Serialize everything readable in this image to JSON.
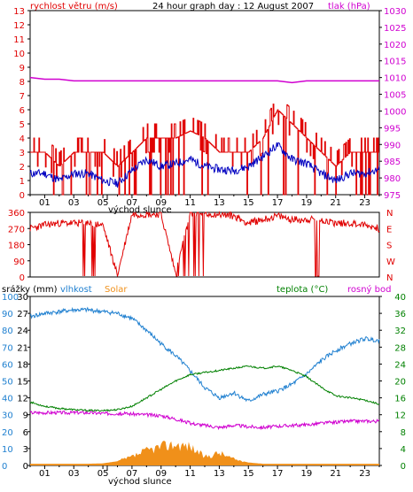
{
  "title": "24 hour graph day : 12 August 2007",
  "colors": {
    "red": "#e00000",
    "blue": "#0000c0",
    "magenta": "#d000d0",
    "green": "#008000",
    "orange": "#f0901a",
    "sky": "#2080d0",
    "frame": "#000000"
  },
  "chart_data": [
    {
      "type": "line",
      "title": "24 hour graph day : 12 August 2007",
      "left_axis": {
        "label": "rychlost větru (m/s)",
        "min": 0,
        "max": 13,
        "ticks": [
          "0",
          "1",
          "2",
          "3",
          "4",
          "5",
          "6",
          "7",
          "8",
          "9",
          "10",
          "11",
          "12",
          "13"
        ]
      },
      "right_axis": {
        "label": "tlak (hPa)",
        "min": 975,
        "max": 1030,
        "ticks": [
          "975",
          "980",
          "985",
          "990",
          "995",
          "1000",
          "1005",
          "1010",
          "1015",
          "1020",
          "1025",
          "1030"
        ]
      },
      "x_axis": {
        "ticks": [
          "01",
          "03",
          "05",
          "07",
          "09",
          "11",
          "13",
          "15",
          "17",
          "19",
          "21",
          "23"
        ],
        "sunrise_label": "východ slunce",
        "sunrise_hour": 5.3
      },
      "grid": false,
      "series": [
        {
          "name": "",
          "kind": "wind_gust_bars",
          "x": [
            0,
            1,
            2,
            3,
            4,
            5,
            6,
            7,
            8,
            9,
            10,
            11,
            12,
            13,
            14,
            15,
            16,
            17,
            18,
            19,
            20,
            21,
            22,
            23,
            24
          ],
          "y": [
            3,
            3,
            2,
            3,
            3,
            3,
            2,
            3,
            4,
            4,
            4,
            4.5,
            4,
            3,
            3,
            3,
            4,
            6,
            5,
            4,
            3,
            2,
            3,
            3,
            3
          ]
        },
        {
          "name": "",
          "kind": "wind_avg",
          "x": [
            0,
            1,
            2,
            3,
            4,
            5,
            6,
            7,
            8,
            9,
            10,
            11,
            12,
            13,
            14,
            15,
            16,
            17,
            18,
            19,
            20,
            21,
            22,
            23,
            24
          ],
          "y": [
            1.5,
            1.5,
            1.0,
            1.5,
            1.5,
            1.0,
            0.8,
            1.7,
            2.5,
            2.0,
            2.2,
            2.5,
            2.0,
            1.8,
            1.7,
            2.0,
            2.7,
            3.5,
            2.5,
            2.2,
            1.5,
            1.0,
            1.5,
            1.5,
            1.8
          ]
        },
        {
          "name": "",
          "kind": "pressure",
          "x": [
            0,
            1,
            2,
            3,
            4,
            5,
            6,
            7,
            8,
            9,
            10,
            11,
            12,
            13,
            14,
            15,
            16,
            17,
            18,
            19,
            20,
            21,
            22,
            23,
            24
          ],
          "y": [
            1010,
            1009.5,
            1009.5,
            1009,
            1009,
            1009,
            1009,
            1009,
            1009,
            1009,
            1009,
            1009,
            1009,
            1009,
            1009,
            1009,
            1009,
            1009,
            1008.5,
            1009,
            1009,
            1009,
            1009,
            1009,
            1009
          ]
        }
      ]
    },
    {
      "type": "scatter",
      "title": "",
      "left_axis": {
        "min": 0,
        "max": 360,
        "ticks": [
          "0",
          "90",
          "180",
          "270",
          "360"
        ]
      },
      "right_axis": {
        "ticks": [
          "N",
          "E",
          "S",
          "W",
          "N"
        ]
      },
      "series": [
        {
          "name": "",
          "kind": "wind_direction",
          "x": [
            0,
            1,
            2,
            3,
            4,
            5,
            6,
            7,
            8,
            9,
            10,
            11,
            12,
            13,
            14,
            15,
            16,
            17,
            18,
            19,
            20,
            21,
            22,
            23,
            24
          ],
          "y": [
            270,
            290,
            300,
            300,
            300,
            290,
            10,
            350,
            350,
            350,
            20,
            350,
            350,
            350,
            340,
            300,
            320,
            340,
            320,
            320,
            320,
            300,
            300,
            290,
            270
          ]
        }
      ]
    },
    {
      "type": "line",
      "title": "",
      "legend": [
        "srážky (mm)",
        "vlhkost",
        "Solar",
        "teplota (°C)",
        "rosný bod"
      ],
      "left_axes": [
        {
          "label": "srážky (mm)",
          "min": 0,
          "max": 30,
          "ticks": [
            "0",
            "3",
            "6",
            "9",
            "12",
            "15",
            "18",
            "21",
            "24",
            "27",
            "30"
          ]
        },
        {
          "label": "vlhkost",
          "min": 0,
          "max": 100,
          "ticks": [
            "0",
            "10",
            "20",
            "30",
            "40",
            "50",
            "60",
            "70",
            "80",
            "90",
            "100"
          ]
        }
      ],
      "right_axis": {
        "label": "teplota (°C)",
        "min": 0,
        "max": 40,
        "ticks": [
          "0",
          "4",
          "8",
          "12",
          "16",
          "20",
          "24",
          "28",
          "32",
          "36",
          "40"
        ]
      },
      "x_axis": {
        "ticks": [
          "01",
          "03",
          "05",
          "07",
          "09",
          "11",
          "13",
          "15",
          "17",
          "19",
          "21",
          "23"
        ],
        "sunrise_label": "východ slunce",
        "sunrise_hour": 5.3
      },
      "series": [
        {
          "name": "vlhkost",
          "kind": "humidity",
          "x": [
            0,
            1,
            2,
            3,
            4,
            5,
            6,
            7,
            8,
            9,
            10,
            11,
            12,
            13,
            14,
            15,
            16,
            17,
            18,
            19,
            20,
            21,
            22,
            23,
            24
          ],
          "y": [
            88,
            90,
            91,
            92,
            92,
            91,
            90,
            87,
            80,
            72,
            65,
            56,
            46,
            40,
            43,
            38,
            42,
            44,
            48,
            54,
            62,
            68,
            72,
            75,
            74
          ]
        },
        {
          "name": "teplota (°C)",
          "kind": "temperature",
          "x": [
            0,
            1,
            2,
            3,
            4,
            5,
            6,
            7,
            8,
            9,
            10,
            11,
            12,
            13,
            14,
            15,
            16,
            17,
            18,
            19,
            20,
            21,
            22,
            23,
            24
          ],
          "y": [
            15,
            14,
            13.5,
            13.2,
            13,
            13,
            13.2,
            14,
            16,
            18,
            20,
            21.5,
            22,
            22.5,
            23,
            23.5,
            23,
            23.5,
            22.5,
            21,
            18.5,
            16.5,
            16,
            15.5,
            14.5
          ]
        },
        {
          "name": "rosný bod",
          "kind": "dew_point",
          "x": [
            0,
            1,
            2,
            3,
            4,
            5,
            6,
            7,
            8,
            9,
            10,
            11,
            12,
            13,
            14,
            15,
            16,
            17,
            18,
            19,
            20,
            21,
            22,
            23,
            24
          ],
          "y": [
            12.5,
            12.5,
            12.5,
            12.5,
            12.5,
            12.3,
            12.3,
            12.2,
            12.0,
            11.8,
            11.0,
            10.0,
            9.5,
            9.0,
            9.5,
            9.2,
            9.0,
            9.3,
            9.5,
            9.6,
            10.0,
            10.2,
            10.5,
            10.5,
            10.5
          ]
        },
        {
          "name": "Solar",
          "kind": "solar_area",
          "x": [
            0,
            1,
            2,
            3,
            4,
            5,
            6,
            7,
            8,
            9,
            10,
            11,
            12,
            13,
            14,
            15,
            16,
            17,
            18,
            19,
            20,
            21,
            22,
            23,
            24
          ],
          "y": [
            0.4,
            0.4,
            0.4,
            0.4,
            0.4,
            0.5,
            1.0,
            2.0,
            3.5,
            4.5,
            5.0,
            4.5,
            2.0,
            3.0,
            1.5,
            0.7,
            0.4,
            0.4,
            0.4,
            0.4,
            0.4,
            0.4,
            0.4,
            0.4,
            0.4
          ]
        }
      ]
    }
  ]
}
